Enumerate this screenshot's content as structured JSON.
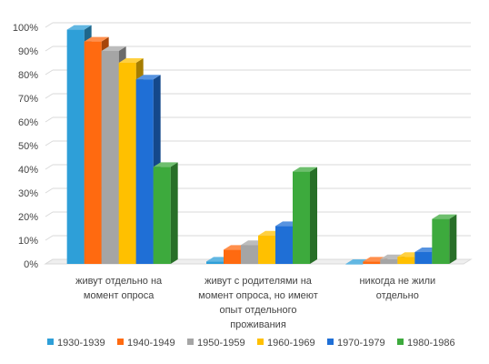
{
  "chart_data": {
    "type": "bar",
    "style": "3d-clustered-column",
    "title": "",
    "xlabel": "",
    "ylabel": "",
    "ylim": [
      0,
      100
    ],
    "y_ticks": [
      "0%",
      "10%",
      "20%",
      "30%",
      "40%",
      "50%",
      "60%",
      "70%",
      "80%",
      "90%",
      "100%"
    ],
    "grid": true,
    "legend_position": "bottom",
    "categories": [
      [
        "живут отдельно на",
        "момент опроса"
      ],
      [
        "живут с родителями на",
        "момент опроса, но имеют",
        "опыт отдельного",
        "проживания"
      ],
      [
        "никогда не жили",
        "отдельно"
      ]
    ],
    "series": [
      {
        "name": "1930-1939",
        "color": "#2E9FD8",
        "values": [
          99,
          1,
          0
        ]
      },
      {
        "name": "1940-1949",
        "color": "#FF6A10",
        "values": [
          94,
          6,
          1
        ]
      },
      {
        "name": "1950-1959",
        "color": "#A5A5A5",
        "values": [
          90,
          8,
          2
        ]
      },
      {
        "name": "1960-1969",
        "color": "#FFC000",
        "values": [
          85,
          12,
          3
        ]
      },
      {
        "name": "1970-1979",
        "color": "#1F6FD6",
        "values": [
          78,
          16,
          5
        ]
      },
      {
        "name": "1980-1986",
        "color": "#3DAA3D",
        "values": [
          41,
          39,
          19
        ]
      }
    ]
  }
}
